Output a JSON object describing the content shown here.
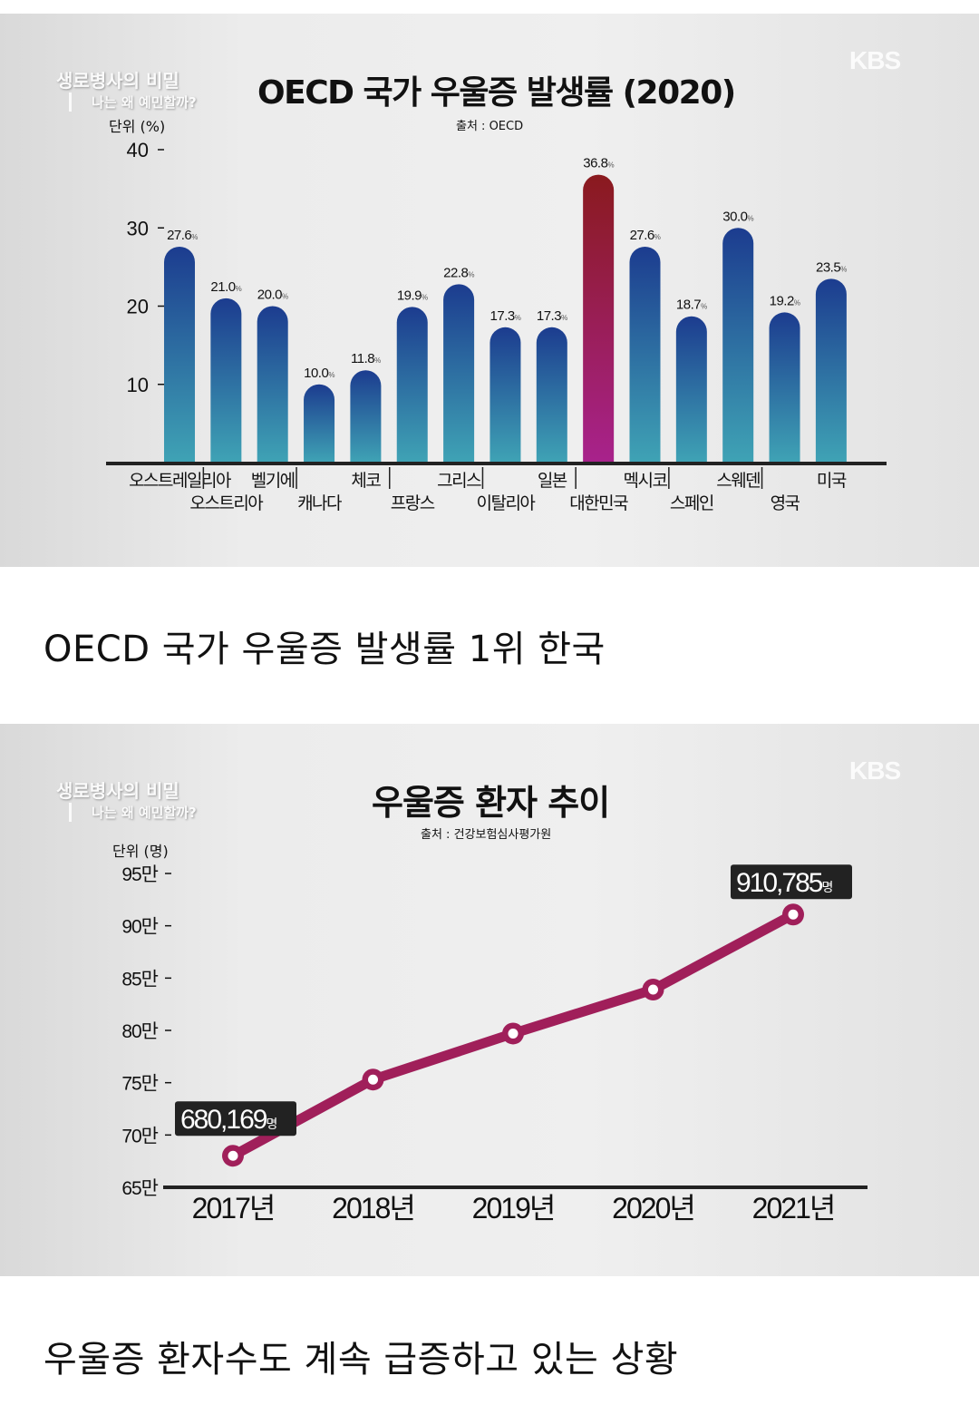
{
  "panels": [
    {
      "broadcaster_logo": "KBS",
      "show_title": "생로병사의 비밀",
      "show_subtitle": "나는 왜 예민할까?",
      "title": "OECD 국가 우울증 발생률 (2020)",
      "source": "출처 : OECD",
      "unit": "단위 (%)"
    },
    {
      "broadcaster_logo": "KBS",
      "show_title": "생로병사의 비밀",
      "show_subtitle": "나는 왜 예민할까?",
      "title": "우울증 환자 추이",
      "source": "출처 : 건강보험심사평가원",
      "unit": "단위 (명)"
    }
  ],
  "captions": [
    "OECD 국가 우울증 발생률 1위 한국",
    "우울증 환자수도 계속 급증하고 있는 상황"
  ],
  "chart_data": [
    {
      "type": "bar",
      "title": "OECD 국가 우울증 발생률 (2020)",
      "ylabel": "단위 (%)",
      "ylim": [
        0,
        40
      ],
      "yticks": [
        10,
        20,
        30,
        40
      ],
      "categories": [
        "오스트레일리아",
        "오스트리아",
        "벨기에",
        "캐나다",
        "체코",
        "프랑스",
        "그리스",
        "이탈리아",
        "일본",
        "대한민국",
        "멕시코",
        "스페인",
        "스웨덴",
        "영국",
        "미국"
      ],
      "values": [
        27.6,
        21.0,
        20.0,
        10.0,
        11.8,
        19.9,
        22.8,
        17.3,
        17.3,
        36.8,
        27.6,
        18.7,
        30.0,
        19.2,
        23.5
      ],
      "value_labels": [
        "27.6",
        "21.0",
        "20.0",
        "10.0",
        "11.8",
        "19.9",
        "22.8",
        "17.3",
        "17.3",
        "36.8",
        "27.6",
        "18.7",
        "30.0",
        "19.2",
        "23.5"
      ],
      "value_suffix": "%",
      "highlight": "대한민국",
      "colors": {
        "bar_top": "#1c3c8f",
        "bar_bottom": "#3fa3b5",
        "highlight_top": "#8a1a1e",
        "highlight_bottom": "#a8228c"
      },
      "grid": false
    },
    {
      "type": "line",
      "title": "우울증 환자 추이",
      "ylabel": "단위 (명)",
      "ylim": [
        650000,
        950000
      ],
      "yticks": [
        "65만",
        "70만",
        "75만",
        "80만",
        "85만",
        "90만",
        "95만"
      ],
      "ytick_values": [
        650000,
        700000,
        750000,
        800000,
        850000,
        900000,
        950000
      ],
      "categories": [
        "2017년",
        "2018년",
        "2019년",
        "2020년",
        "2021년"
      ],
      "values": [
        680169,
        753000,
        797000,
        839000,
        910785
      ],
      "labels": [
        {
          "index": 0,
          "text": "680,169",
          "suffix": "명"
        },
        {
          "index": 4,
          "text": "910,785",
          "suffix": "명"
        }
      ],
      "colors": {
        "line": "#a01f5a"
      },
      "grid": false
    }
  ]
}
